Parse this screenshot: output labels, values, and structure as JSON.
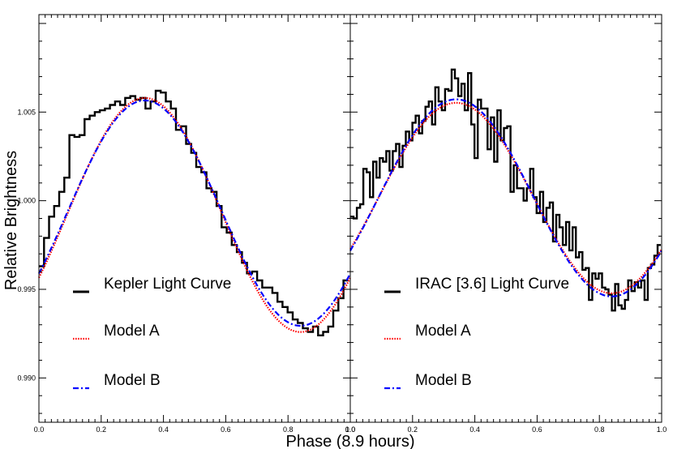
{
  "chart_data": {
    "type": "line",
    "xlabel": "Phase (8.9 hours)",
    "ylabel": "Relative Brightness",
    "xlim": [
      0,
      1
    ],
    "ylim": [
      0.9875,
      1.0105
    ],
    "yticks": [
      0.99,
      0.995,
      1.0,
      1.005
    ],
    "ytick_labels": [
      "0.990",
      "0.995",
      "1.000",
      "1.005"
    ],
    "panels": [
      {
        "xticks": [
          0.0,
          0.2,
          0.4,
          0.6,
          0.8,
          1.0
        ],
        "xtick_labels": [
          "0.0",
          "0.2",
          "0.4",
          "0.6",
          "0.8",
          "1.0"
        ],
        "series": [
          {
            "name": "Kepler Light Curve",
            "style": "histogram",
            "color": "#000000",
            "bin_width": 0.0163,
            "x": [
              0.0,
              0.0163,
              0.0326,
              0.0489,
              0.0652,
              0.0815,
              0.0978,
              0.1141,
              0.1304,
              0.1467,
              0.163,
              0.1793,
              0.1956,
              0.2119,
              0.2282,
              0.2445,
              0.2608,
              0.2771,
              0.2934,
              0.3097,
              0.326,
              0.3423,
              0.3586,
              0.3749,
              0.3912,
              0.4075,
              0.4238,
              0.4401,
              0.4564,
              0.4727,
              0.489,
              0.5053,
              0.5216,
              0.5379,
              0.5542,
              0.5705,
              0.5868,
              0.6031,
              0.6194,
              0.6357,
              0.652,
              0.6683,
              0.6846,
              0.7009,
              0.7172,
              0.7335,
              0.7498,
              0.7661,
              0.7824,
              0.7987,
              0.815,
              0.8313,
              0.8476,
              0.8639,
              0.8802,
              0.8965,
              0.9128,
              0.9291,
              0.9454,
              0.9617,
              0.978
            ],
            "y": [
              0.9963,
              0.9979,
              0.9991,
              0.9997,
              1.0005,
              1.0013,
              1.0037,
              1.0036,
              1.0037,
              1.0046,
              1.0048,
              1.005,
              1.0051,
              1.0052,
              1.0054,
              1.0056,
              1.0054,
              1.0058,
              1.0059,
              1.0057,
              1.0058,
              1.0052,
              1.0056,
              1.0062,
              1.0061,
              1.0056,
              1.0052,
              1.004,
              1.0042,
              1.0032,
              1.0027,
              1.0019,
              1.0016,
              1.0007,
              1.0005,
              0.9997,
              0.9985,
              0.9982,
              0.9975,
              0.9971,
              0.9965,
              0.9959,
              0.996,
              0.9955,
              0.9951,
              0.9951,
              0.9948,
              0.9943,
              0.994,
              0.9937,
              0.9933,
              0.9931,
              0.9928,
              0.9926,
              0.9929,
              0.9924,
              0.9926,
              0.9929,
              0.9938,
              0.9945,
              0.9955
            ]
          },
          {
            "name": "Model A",
            "style": "dotted",
            "color": "#ff0000",
            "a0": 0.999194,
            "amp": 0.006602,
            "peak_phase": 0.34
          },
          {
            "name": "Model B",
            "style": "dash-dot",
            "color": "#0000ff",
            "a0": 0.999298,
            "amp": 0.006357,
            "peak_phase": 0.34
          }
        ]
      },
      {
        "xticks": [
          0.0,
          0.2,
          0.4,
          0.6,
          0.8,
          1.0
        ],
        "xtick_labels": [
          "0.0",
          "0.2",
          "0.4",
          "0.6",
          "0.8",
          "1.0"
        ],
        "series": [
          {
            "name": "IRAC [3.6] Light Curve",
            "style": "histogram",
            "color": "#000000",
            "bin_width": 0.0105,
            "x": [
              0.0,
              0.0105,
              0.021,
              0.0315,
              0.042,
              0.0525,
              0.063,
              0.0735,
              0.084,
              0.0945,
              0.105,
              0.1155,
              0.126,
              0.1365,
              0.147,
              0.1575,
              0.168,
              0.1785,
              0.189,
              0.1995,
              0.21,
              0.2205,
              0.231,
              0.2415,
              0.252,
              0.2625,
              0.273,
              0.2835,
              0.294,
              0.3045,
              0.315,
              0.3255,
              0.336,
              0.3465,
              0.357,
              0.3675,
              0.378,
              0.3885,
              0.399,
              0.4095,
              0.42,
              0.4305,
              0.441,
              0.4515,
              0.462,
              0.4725,
              0.483,
              0.4935,
              0.504,
              0.5145,
              0.525,
              0.5355,
              0.546,
              0.5565,
              0.567,
              0.5775,
              0.588,
              0.5985,
              0.609,
              0.6195,
              0.63,
              0.6405,
              0.651,
              0.6615,
              0.672,
              0.6825,
              0.693,
              0.7035,
              0.714,
              0.7245,
              0.735,
              0.7455,
              0.756,
              0.7665,
              0.777,
              0.7875,
              0.798,
              0.8085,
              0.819,
              0.8295,
              0.84,
              0.8505,
              0.861,
              0.8715,
              0.882,
              0.8925,
              0.903,
              0.9135,
              0.924,
              0.9345,
              0.945,
              0.9555,
              0.966,
              0.9765,
              0.987
            ],
            "y": [
              0.9991,
              0.999,
              0.9996,
              0.9998,
              1.0018,
              1.0016,
              1.0002,
              1.0022,
              1.0013,
              1.0024,
              1.0022,
              1.0028,
              1.0017,
              1.0028,
              1.0032,
              1.0019,
              1.0031,
              1.0039,
              1.0034,
              1.0044,
              1.0048,
              1.0038,
              1.0045,
              1.0053,
              1.0056,
              1.0043,
              1.0064,
              1.0056,
              1.0051,
              1.0063,
              1.0062,
              1.0074,
              1.0069,
              1.0059,
              1.0066,
              1.0051,
              1.0072,
              1.0043,
              1.0024,
              1.0057,
              1.0052,
              1.0052,
              1.0029,
              1.0047,
              1.0022,
              1.0051,
              1.0034,
              1.0041,
              1.0042,
              1.0005,
              1.002,
              1.0007,
              1.0007,
              1.0,
              1.0007,
              1.0018,
              1.0002,
              0.9993,
              1.0005,
              0.9988,
              0.9996,
              0.9999,
              0.9977,
              0.9992,
              0.9985,
              0.9975,
              0.9988,
              0.9972,
              0.9985,
              0.9968,
              0.9971,
              0.9961,
              0.9962,
              0.9944,
              0.9959,
              0.9956,
              0.9959,
              0.9951,
              0.995,
              0.9947,
              0.9938,
              0.9953,
              0.9941,
              0.9939,
              0.9944,
              0.9955,
              0.9949,
              0.9954,
              0.9951,
              0.9955,
              0.9944,
              0.9962,
              0.9964,
              0.9969,
              0.9975
            ]
          },
          {
            "name": "Model A",
            "style": "dotted",
            "color": "#ff0000",
            "a0": 1.000149,
            "amp": 0.005374,
            "peak_phase": 0.34
          },
          {
            "name": "Model B",
            "style": "dash-dot",
            "color": "#0000ff",
            "a0": 1.000159,
            "amp": 0.00556,
            "peak_phase": 0.34
          }
        ]
      }
    ]
  }
}
